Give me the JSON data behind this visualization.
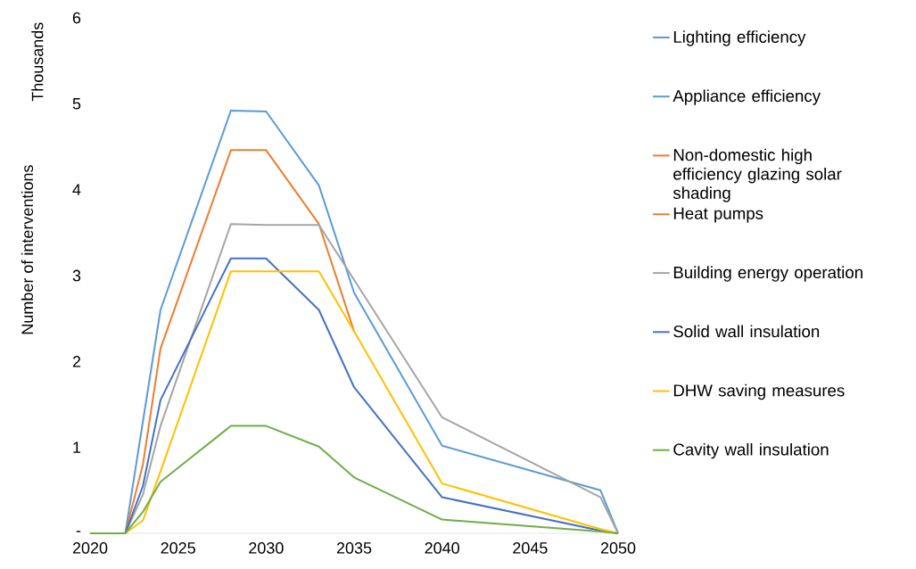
{
  "chart_data": {
    "type": "line",
    "ylabel": "Number of interventions",
    "annotations": [
      "Thousands"
    ],
    "x": [
      2020,
      2022,
      2023,
      2024,
      2028,
      2030,
      2033,
      2035,
      2040,
      2049,
      2050
    ],
    "xlim": [
      2020,
      2050
    ],
    "xticks": [
      2020,
      2025,
      2030,
      2035,
      2040,
      2045,
      2050
    ],
    "ylim": [
      0,
      6
    ],
    "yticks": [
      {
        "value": 0,
        "label": "-"
      },
      1,
      2,
      3,
      4,
      5,
      6
    ],
    "grid": false,
    "legend": "right",
    "marker": "none",
    "line_style": "solid",
    "series": [
      {
        "name": "Lighting efficiency",
        "color": "#5b9bd5",
        "values": [
          null,
          null,
          null,
          null,
          null,
          null,
          null,
          null,
          null,
          null,
          null
        ]
      },
      {
        "name": "Appliance efficiency",
        "color": "#5b9bd5",
        "values": [
          0,
          0,
          1.3,
          2.6,
          4.92,
          4.91,
          4.05,
          2.8,
          1.02,
          0.5,
          0
        ]
      },
      {
        "name": "Non-domestic high efficiency glazing solar shading",
        "color": "#ed7d31",
        "values": [
          null,
          null,
          null,
          null,
          null,
          null,
          null,
          null,
          null,
          null,
          null
        ]
      },
      {
        "name": "Heat pumps",
        "color": "#ed7d31",
        "values": [
          0,
          0,
          0.8,
          2.15,
          4.46,
          4.46,
          3.6,
          2.35,
          null,
          null,
          null
        ]
      },
      {
        "name": "Building energy operation",
        "color": "#a5a5a5",
        "values": [
          0,
          0,
          0.45,
          1.25,
          3.6,
          3.59,
          3.59,
          2.95,
          1.35,
          0.42,
          0
        ]
      },
      {
        "name": "Solid wall insulation",
        "color": "#4472c4",
        "values": [
          0,
          0,
          0.55,
          1.55,
          3.2,
          3.2,
          2.6,
          1.7,
          0.42,
          0.03,
          0
        ]
      },
      {
        "name": "DHW saving measures",
        "color": "#ffc000",
        "values": [
          0,
          0,
          0.15,
          0.72,
          3.05,
          3.05,
          3.05,
          2.35,
          0.58,
          0.05,
          0
        ]
      },
      {
        "name": "Cavity wall insulation",
        "color": "#70ad47",
        "values": [
          0,
          0,
          0.25,
          0.6,
          1.25,
          1.25,
          1.01,
          0.65,
          0.16,
          0.02,
          0
        ]
      }
    ]
  }
}
